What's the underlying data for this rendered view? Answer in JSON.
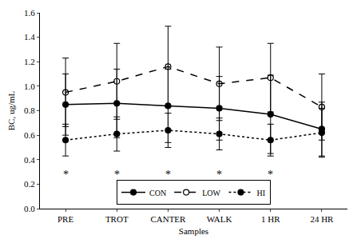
{
  "chart_data": {
    "type": "line",
    "x_label": "Samples",
    "y_label": "BC, ug/mL",
    "categories": [
      "PRE",
      "TROT",
      "CANTER",
      "WALK",
      "1 HR",
      "24 HR"
    ],
    "series": [
      {
        "name": "CON",
        "color": "#000000",
        "marker": "circle",
        "line_style": "solid",
        "values": [
          0.85,
          0.86,
          0.84,
          0.82,
          0.77,
          0.65
        ],
        "errors": [
          0.25,
          0.28,
          0.3,
          0.26,
          0.32,
          0.22
        ]
      },
      {
        "name": "LOW",
        "color": "#000000",
        "marker": "circle-open",
        "line_style": "dash",
        "values": [
          0.95,
          1.04,
          1.16,
          1.02,
          1.07,
          0.83
        ],
        "errors": [
          0.28,
          0.31,
          0.33,
          0.3,
          0.28,
          0.27
        ]
      },
      {
        "name": "HI",
        "color": "#000000",
        "marker": "circle",
        "line_style": "dot",
        "values": [
          0.56,
          0.61,
          0.64,
          0.61,
          0.56,
          0.62
        ],
        "errors": [
          0.13,
          0.14,
          0.14,
          0.13,
          0.13,
          0.2
        ]
      }
    ],
    "ylim": [
      0,
      1.6
    ],
    "yticks": [
      {
        "value": 0,
        "label": "0.0"
      },
      {
        "value": 0.2,
        "label": "0.2"
      },
      {
        "value": 0.4,
        "label": "0.4"
      },
      {
        "value": 0.6,
        "label": "0.6"
      },
      {
        "value": 0.8,
        "label": "0.8"
      },
      {
        "value": 1.0,
        "label": "1.0"
      },
      {
        "value": 1.2,
        "label": "1.2"
      },
      {
        "value": 1.4,
        "label": "1.4"
      },
      {
        "value": 1.6,
        "label": "1.6"
      }
    ],
    "grid": false,
    "legend": "bottom",
    "annotations": [
      {
        "x": "PRE",
        "y": 0.28,
        "text": "*"
      },
      {
        "x": "TROT",
        "y": 0.28,
        "text": "*"
      },
      {
        "x": "CANTER",
        "y": 0.28,
        "text": "*"
      },
      {
        "x": "WALK",
        "y": 0.28,
        "text": "*"
      },
      {
        "x": "1 HR",
        "y": 0.28,
        "text": "*"
      }
    ]
  }
}
